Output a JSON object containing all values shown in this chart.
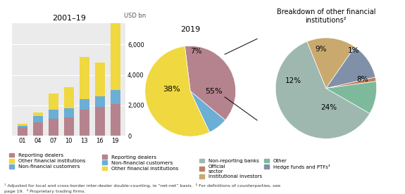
{
  "bar_title": "2001–19",
  "bar_ylabel": "USD bn",
  "bar_categories": [
    "01",
    "04",
    "07",
    "10",
    "13",
    "16",
    "19"
  ],
  "bar_reporting_dealers": [
    550,
    900,
    1100,
    1200,
    1700,
    1900,
    2100
  ],
  "bar_other_financial": [
    150,
    250,
    1100,
    1400,
    2800,
    2200,
    4600
  ],
  "bar_nonfinancial": [
    100,
    400,
    600,
    600,
    700,
    700,
    900
  ],
  "bar_color_reporting": "#b5838d",
  "bar_color_other": "#f0d840",
  "bar_color_nonfinancial": "#6baed6",
  "pie1_title": "2019",
  "pie1_reporting": 38,
  "pie1_nonfinancial": 7,
  "pie1_other": 55,
  "pie1_legend": [
    "Reporting dealers",
    "Non-financial customers",
    "Other financial institutions"
  ],
  "pie2_title": "Breakdown of other financial\ninstitutions²",
  "pie2_nonreporting": 46,
  "pie2_institutional": 12,
  "pie2_hedge": 9,
  "pie2_official": 1,
  "pie2_other": 8,
  "pie2_color_nonreporting": "#9eb8b0",
  "pie2_color_institutional": "#c9a96e",
  "pie2_color_hedge": "#8090a8",
  "pie2_color_official": "#c17f5e",
  "pie2_color_other": "#7dba9c",
  "pie2_legend": [
    "Non-reporting banks",
    "Institutional investors",
    "Hedge funds and PTFs³",
    "Official\nsector",
    "Other"
  ],
  "footnote": "¹ Adjusted for local and cross-border inter-dealer double-counting, ie “net-net” basis.  ² For definitions of counterparties, see\npage 19.  ³ Proprietary trading firms.",
  "bg_color": "#ebebeb"
}
